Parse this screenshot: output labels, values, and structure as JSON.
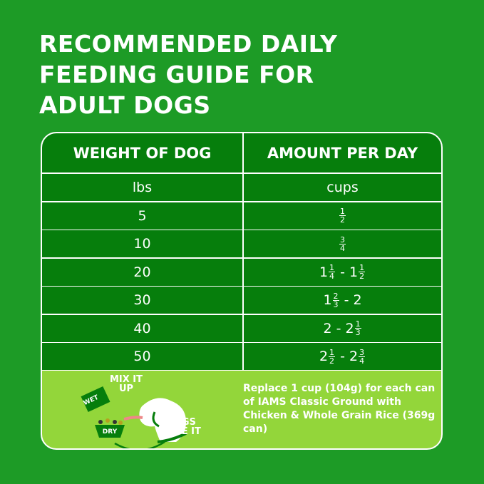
{
  "title_lines": [
    "RECOMMENDED DAILY",
    "FEEDING GUIDE FOR",
    "ADULT DOGS"
  ],
  "table": {
    "headers": [
      "WEIGHT OF DOG",
      "AMOUNT PER DAY"
    ],
    "units": [
      "lbs",
      "cups"
    ],
    "rows": [
      {
        "weight": "5",
        "amount": "1/2"
      },
      {
        "weight": "10",
        "amount": "3/4"
      },
      {
        "weight": "20",
        "amount": "1 1/4 - 1 1/2"
      },
      {
        "weight": "30",
        "amount": "1 2/3 - 2"
      },
      {
        "weight": "40",
        "amount": "2 - 2 1/3"
      },
      {
        "weight": "50",
        "amount": "2 1/2 - 2 3/4"
      }
    ]
  },
  "note": "Replace 1 cup (104g) for each can of IAMS Classic Ground with Chicken & Whole Grain Rice (369g can)",
  "illustration": {
    "mix": "MIX IT UP",
    "wet": "WET",
    "dry": "DRY",
    "dogs": "DOGS LOVE IT"
  },
  "colors": {
    "background": "#1d9b26",
    "cell": "#067e0c",
    "note_panel": "#93d63a"
  }
}
